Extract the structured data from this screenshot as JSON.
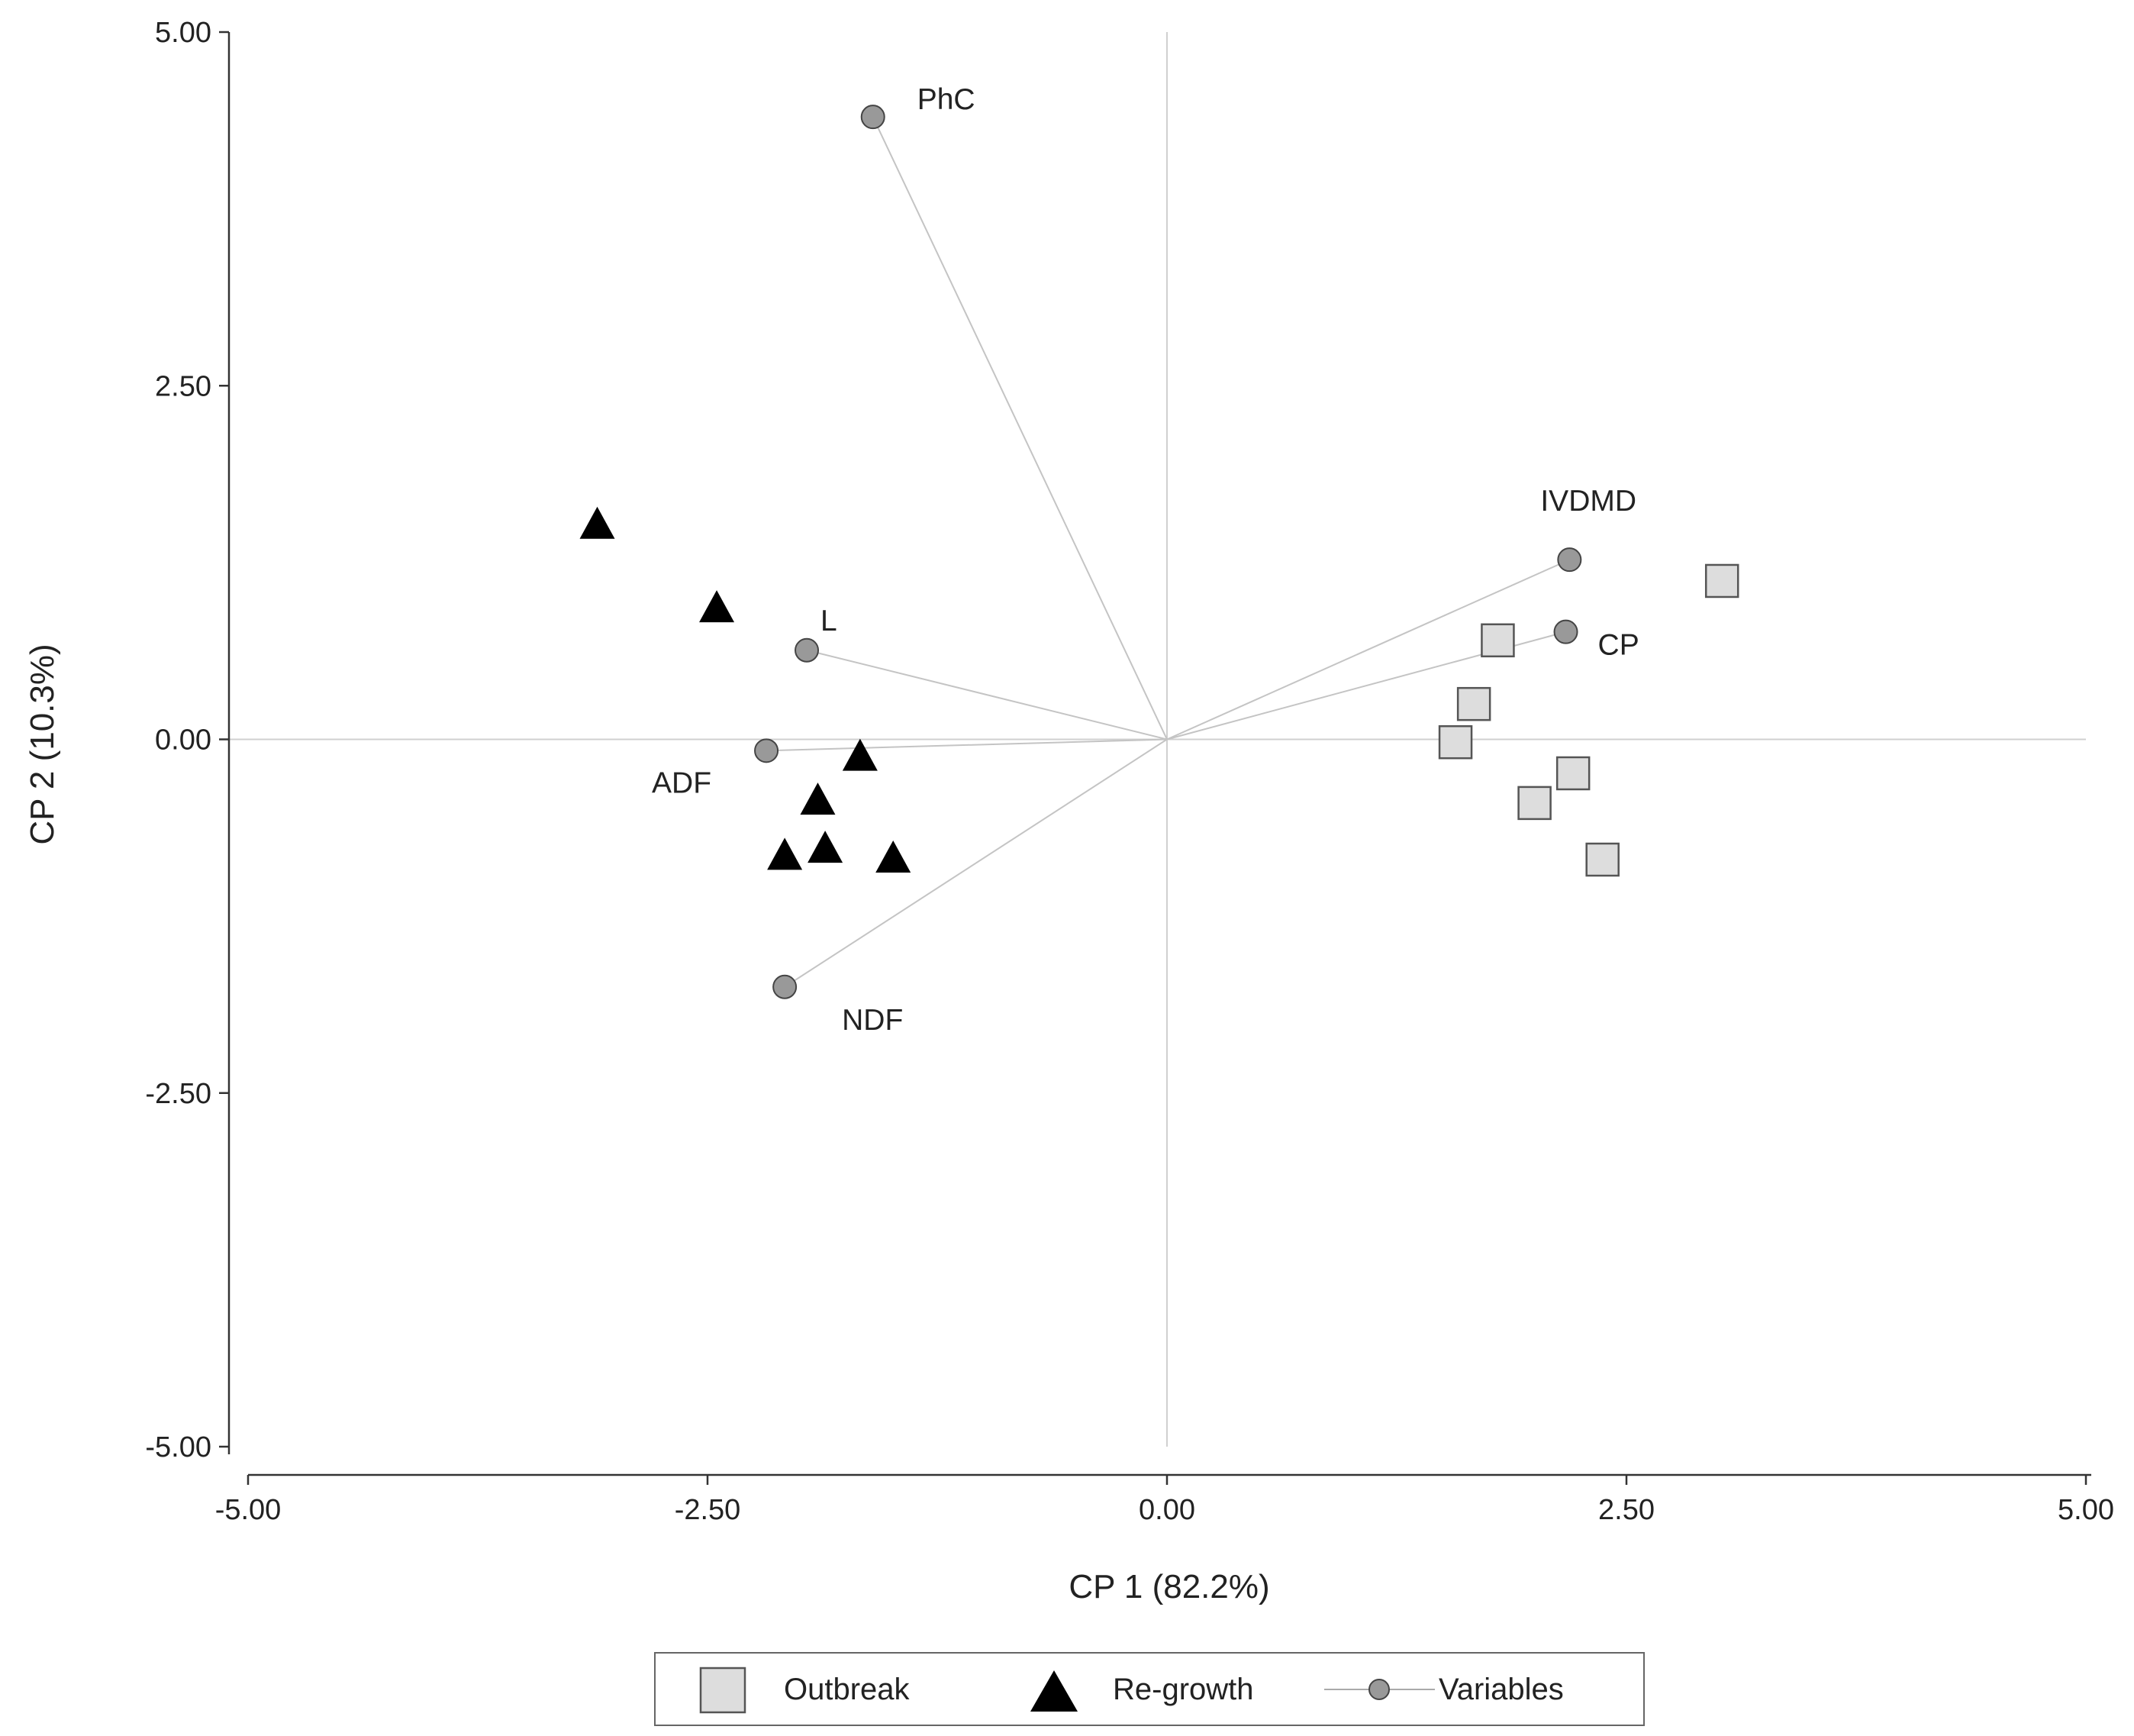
{
  "chart_data": {
    "type": "scatter",
    "title": "",
    "xlabel": "CP 1 (82.2%)",
    "ylabel": "CP 2 (10.3%)",
    "xlim": [
      -5,
      5
    ],
    "ylim": [
      -5,
      5
    ],
    "x_ticks": [
      -5,
      -2.5,
      0,
      2.5,
      5
    ],
    "y_ticks": [
      -5,
      -2.5,
      0,
      2.5,
      5
    ],
    "x_tick_labels": [
      "-5.00",
      "-2.50",
      "0.00",
      "2.50",
      "5.00"
    ],
    "y_tick_labels": [
      "-5.00",
      "-2.50",
      "0.00",
      "2.50",
      "5.00"
    ],
    "grid": false,
    "reference_lines": [
      "x = 0",
      "y = 0"
    ],
    "legend_position": "bottom-center",
    "series": [
      {
        "name": "Outbreak",
        "marker": "square",
        "color": "#dddddd",
        "points": [
          {
            "x": 3.02,
            "y": 1.12
          },
          {
            "x": 1.8,
            "y": 0.7
          },
          {
            "x": 1.67,
            "y": 0.25
          },
          {
            "x": 1.57,
            "y": -0.02
          },
          {
            "x": 2.21,
            "y": -0.24
          },
          {
            "x": 2.0,
            "y": -0.45
          },
          {
            "x": 2.37,
            "y": -0.85
          }
        ]
      },
      {
        "name": "Re-growth",
        "marker": "triangle",
        "color": "#000000",
        "points": [
          {
            "x": -3.1,
            "y": 1.52
          },
          {
            "x": -2.45,
            "y": 0.93
          },
          {
            "x": -1.67,
            "y": -0.12
          },
          {
            "x": -1.9,
            "y": -0.43
          },
          {
            "x": -1.86,
            "y": -0.77
          },
          {
            "x": -2.08,
            "y": -0.82
          },
          {
            "x": -1.49,
            "y": -0.84
          }
        ]
      },
      {
        "name": "Variables",
        "marker": "circle-vector",
        "color": "#999999",
        "points": [
          {
            "label": "PhC",
            "x": -1.6,
            "y": 4.4
          },
          {
            "label": "IVDMD",
            "x": 2.19,
            "y": 1.27
          },
          {
            "label": "CP",
            "x": 2.17,
            "y": 0.76
          },
          {
            "label": "L",
            "x": -1.96,
            "y": 0.63
          },
          {
            "label": "ADF",
            "x": -2.18,
            "y": -0.08
          },
          {
            "label": "NDF",
            "x": -2.08,
            "y": -1.75
          }
        ]
      }
    ]
  }
}
